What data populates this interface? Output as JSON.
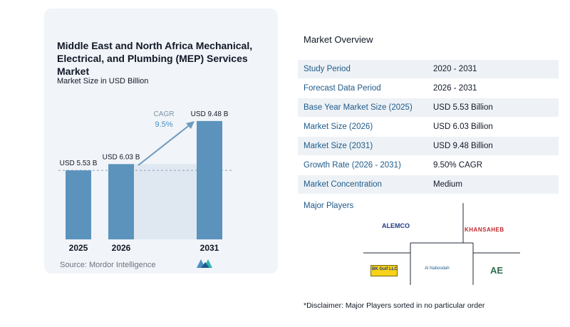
{
  "chart_data": {
    "type": "bar",
    "title": "Middle East and North Africa Mechanical, Electrical, and Plumbing (MEP) Services Market",
    "subtitle": "Market Size in USD Billion",
    "categories": [
      "2025",
      "2026",
      "2031"
    ],
    "values": [
      5.53,
      6.03,
      9.48
    ],
    "data_labels": [
      "USD 5.53 B",
      "USD 6.03 B",
      "USD 9.48 B"
    ],
    "annotation": {
      "label": "CAGR",
      "value": "9.5%"
    },
    "ylim": [
      0,
      10.5
    ],
    "color": "#5b93bd",
    "source": "Source: Mordor Intelligence"
  },
  "overview": {
    "title": "Market Overview",
    "rows": [
      {
        "key": "Study Period",
        "value": "2020 - 2031"
      },
      {
        "key": "Forecast Data Period",
        "value": "2026 - 2031"
      },
      {
        "key": "Base Year Market Size (2025)",
        "value": "USD 5.53 Billion"
      },
      {
        "key": "Market Size (2026)",
        "value": "USD 6.03 Billion"
      },
      {
        "key": "Market Size (2031)",
        "value": "USD 9.48 Billion"
      },
      {
        "key": "Growth Rate (2026 - 2031)",
        "value": "9.50% CAGR"
      },
      {
        "key": "Market Concentration",
        "value": "Medium"
      }
    ]
  },
  "players": {
    "title": "Major Players",
    "logos": [
      "ALEMCO",
      "KHANSAHEB",
      "BK Gulf LLC",
      "Al Naboodah",
      "AE"
    ],
    "disclaimer": "*Disclaimer: Major Players sorted in no particular order"
  },
  "colors": {
    "accent": "#1e5a8a",
    "bar": "#5b93bd",
    "card": "#f1f4f8"
  }
}
